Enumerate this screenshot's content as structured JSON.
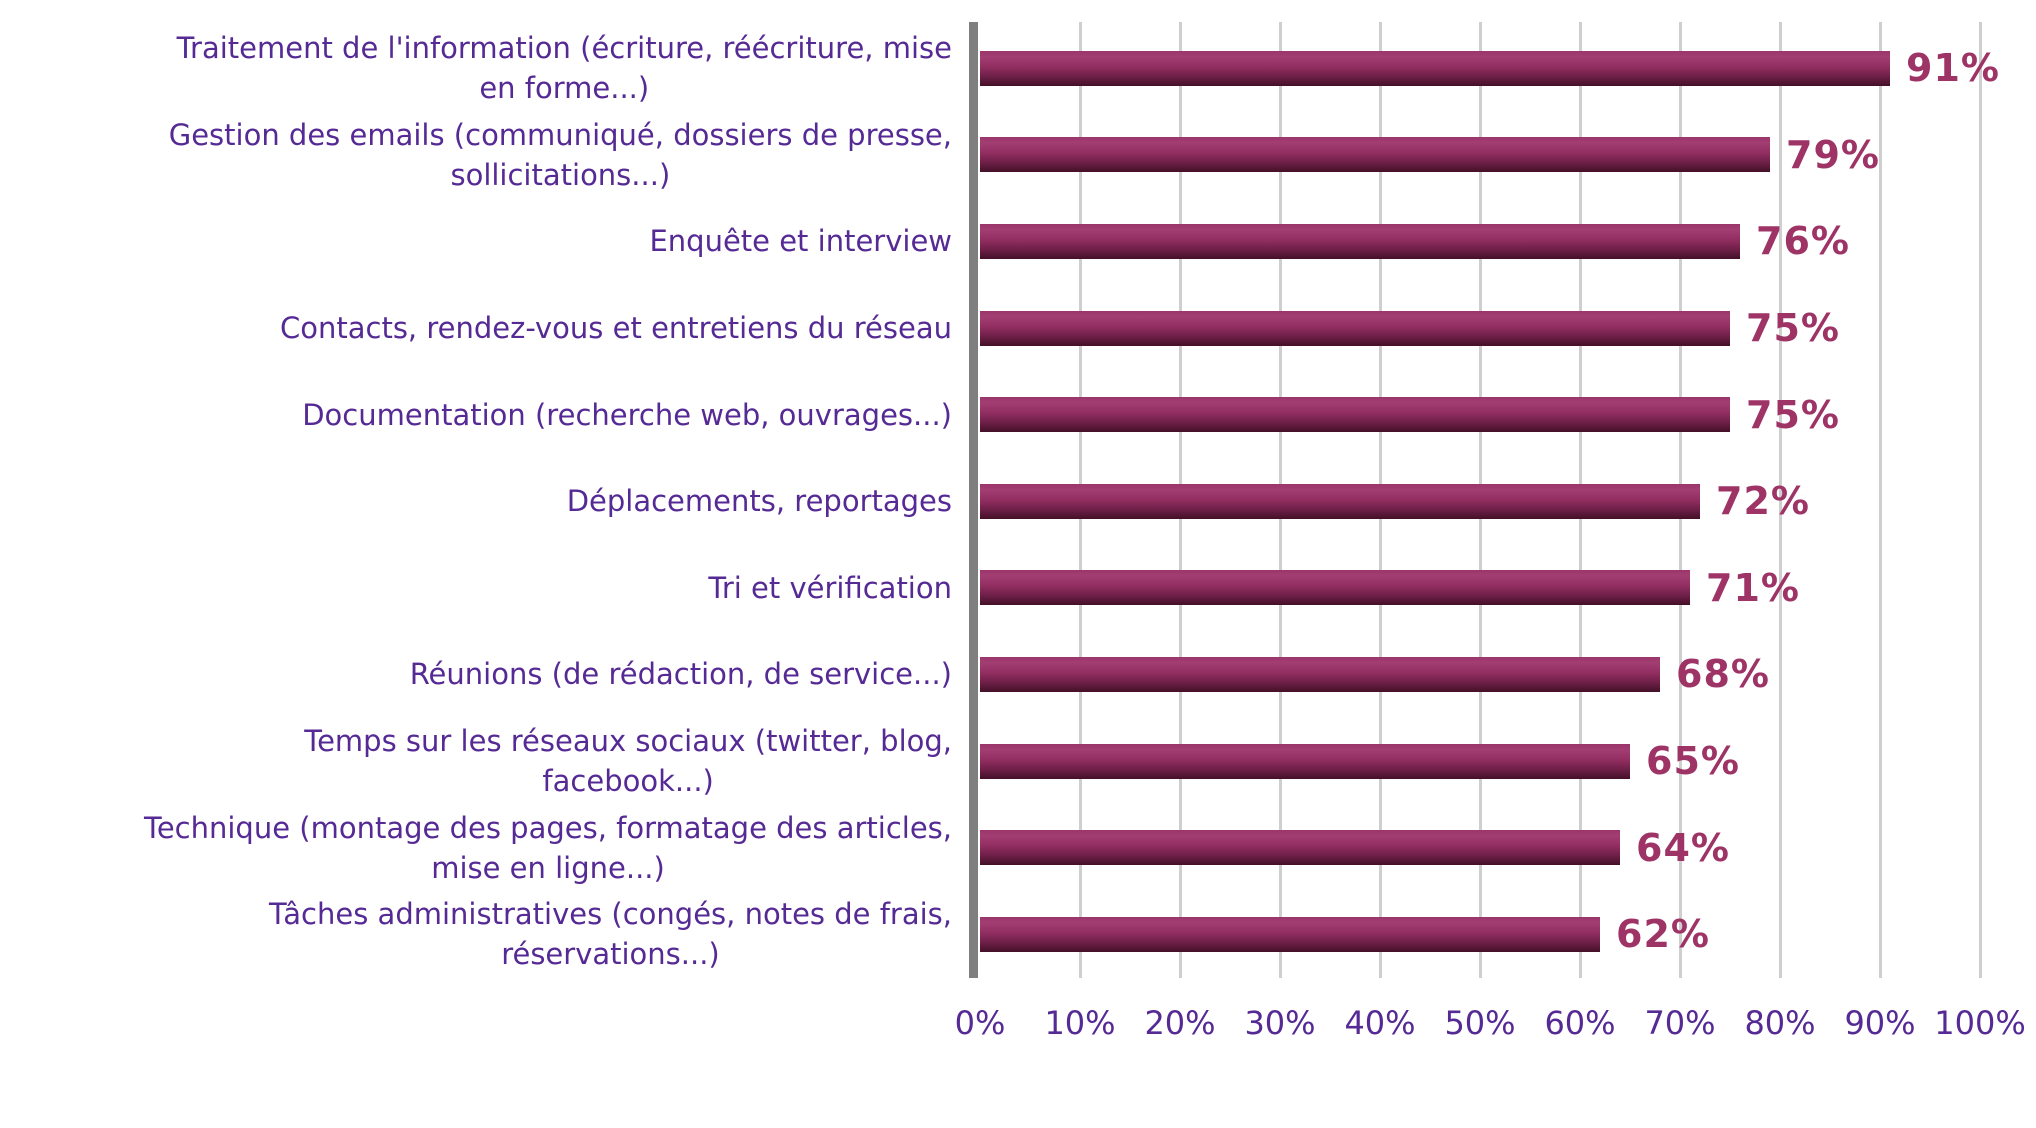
{
  "chart_data": {
    "type": "bar",
    "orientation": "horizontal",
    "title": "",
    "xlabel": "",
    "ylabel": "",
    "xlim": [
      0,
      100
    ],
    "grid": "vertical-light-gray",
    "unit": "%",
    "bar_color_top": "#a23e72",
    "bar_color_bottom": "#451026",
    "category_label_color": "#552a94",
    "value_label_color": "#9e3366",
    "axis_line_color": "#7f7f7f",
    "gridline_color": "#cfcfcf",
    "categories": [
      "Traitement de l'information (écriture, réécriture, mise en forme...)",
      "Gestion des emails (communiqué, dossiers de presse, sollicitations...)",
      "Enquête et interview",
      "Contacts, rendez-vous et entretiens du réseau",
      "Documentation (recherche web, ouvrages...)",
      "Déplacements, reportages",
      "Tri et vérification",
      "Réunions (de rédaction, de service...)",
      "Temps sur les réseaux sociaux (twitter, blog, facebook...)",
      "Technique (montage des pages, formatage des articles, mise en ligne...)",
      "Tâches administratives (congés, notes de frais, réservations...)"
    ],
    "values": [
      91,
      79,
      76,
      75,
      75,
      72,
      71,
      68,
      65,
      64,
      62
    ],
    "rows": [
      {
        "label": "Traitement de l'information (écriture, réécriture, mise\nen forme...)",
        "value": 91,
        "value_label": "91%"
      },
      {
        "label": "Gestion des emails (communiqué, dossiers de presse,\nsollicitations...)",
        "value": 79,
        "value_label": "79%"
      },
      {
        "label": "Enquête et interview",
        "value": 76,
        "value_label": "76%"
      },
      {
        "label": "Contacts, rendez-vous et entretiens du réseau",
        "value": 75,
        "value_label": "75%"
      },
      {
        "label": "Documentation (recherche web, ouvrages...)",
        "value": 75,
        "value_label": "75%"
      },
      {
        "label": "Déplacements, reportages",
        "value": 72,
        "value_label": "72%"
      },
      {
        "label": "Tri et vérification",
        "value": 71,
        "value_label": "71%"
      },
      {
        "label": "Réunions (de rédaction, de service...)",
        "value": 68,
        "value_label": "68%"
      },
      {
        "label": "Temps sur les réseaux sociaux (twitter, blog,\nfacebook...)",
        "value": 65,
        "value_label": "65%"
      },
      {
        "label": "Technique (montage des pages, formatage des articles,\nmise en ligne...)",
        "value": 64,
        "value_label": "64%"
      },
      {
        "label": "Tâches administratives (congés, notes de frais,\nréservations...)",
        "value": 62,
        "value_label": "62%"
      }
    ],
    "x_ticks": [
      {
        "label": "0%",
        "value": 0
      },
      {
        "label": "10%",
        "value": 10
      },
      {
        "label": "20%",
        "value": 20
      },
      {
        "label": "30%",
        "value": 30
      },
      {
        "label": "40%",
        "value": 40
      },
      {
        "label": "50%",
        "value": 50
      },
      {
        "label": "60%",
        "value": 60
      },
      {
        "label": "70%",
        "value": 70
      },
      {
        "label": "80%",
        "value": 80
      },
      {
        "label": "90%",
        "value": 90
      },
      {
        "label": "100%",
        "value": 100
      }
    ]
  }
}
